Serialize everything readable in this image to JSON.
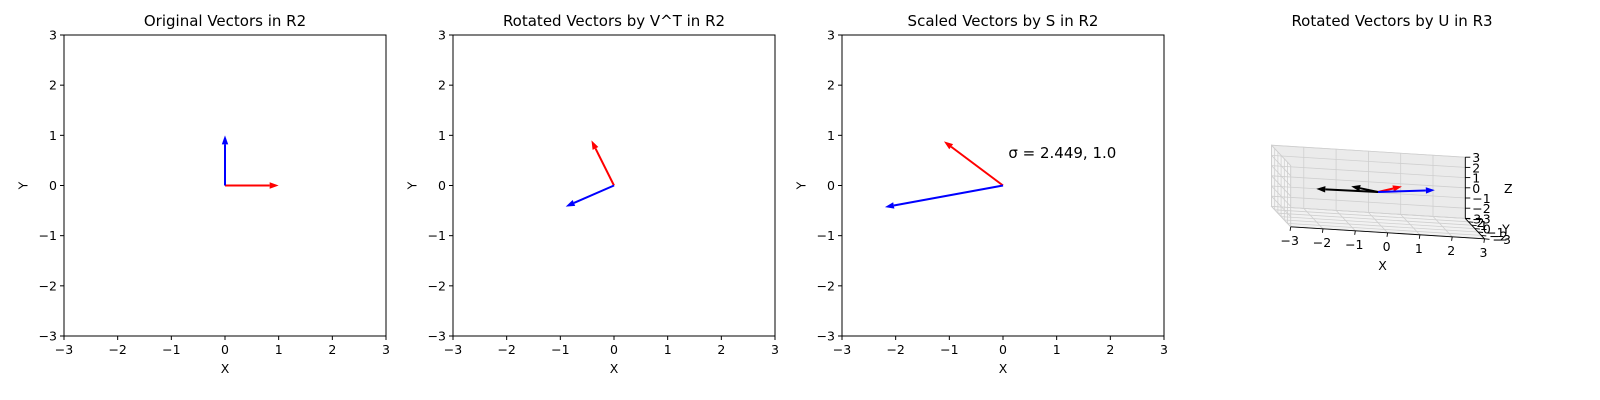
{
  "chart_data": [
    {
      "type": "vector",
      "title": "Original Vectors in R2",
      "xlabel": "X",
      "ylabel": "Y",
      "xlim": [
        -3,
        3
      ],
      "ylim": [
        -3,
        3
      ],
      "ticks": [
        -3,
        -2,
        -1,
        0,
        1,
        2,
        3
      ],
      "tick_labels": [
        "−3",
        "−2",
        "−1",
        "0",
        "1",
        "2",
        "3"
      ],
      "grid": false,
      "vectors": [
        {
          "color": "#ff0000",
          "x": 0,
          "y": 0,
          "dx": 1.0,
          "dy": 0.0
        },
        {
          "color": "#0000ff",
          "x": 0,
          "y": 0,
          "dx": 0.0,
          "dy": 1.0
        }
      ]
    },
    {
      "type": "vector",
      "title": "Rotated Vectors by V^T in R2",
      "xlabel": "X",
      "ylabel": "Y",
      "xlim": [
        -3,
        3
      ],
      "ylim": [
        -3,
        3
      ],
      "ticks": [
        -3,
        -2,
        -1,
        0,
        1,
        2,
        3
      ],
      "tick_labels": [
        "−3",
        "−2",
        "−1",
        "0",
        "1",
        "2",
        "3"
      ],
      "grid": false,
      "vectors": [
        {
          "color": "#ff0000",
          "x": 0,
          "y": 0,
          "dx": -0.42,
          "dy": 0.9
        },
        {
          "color": "#0000ff",
          "x": 0,
          "y": 0,
          "dx": -0.9,
          "dy": -0.42
        }
      ]
    },
    {
      "type": "vector",
      "title": "Scaled Vectors by S in R2",
      "xlabel": "X",
      "ylabel": "Y",
      "xlim": [
        -3,
        3
      ],
      "ylim": [
        -3,
        3
      ],
      "ticks": [
        -3,
        -2,
        -1,
        0,
        1,
        2,
        3
      ],
      "tick_labels": [
        "−3",
        "−2",
        "−1",
        "0",
        "1",
        "2",
        "3"
      ],
      "grid": false,
      "annotation": {
        "text": "σ = 2.449, 1.0",
        "x": 0.1,
        "y": 0.55
      },
      "vectors": [
        {
          "color": "#ff0000",
          "x": 0,
          "y": 0,
          "dx": -1.1,
          "dy": 0.88
        },
        {
          "color": "#0000ff",
          "x": 0,
          "y": 0,
          "dx": -2.2,
          "dy": -0.43
        }
      ]
    },
    {
      "type": "vector3d",
      "title": "Rotated Vectors by U in R3",
      "xlabel": "X",
      "ylabel": "Y",
      "zlabel": "Z",
      "xlim": [
        -3,
        3
      ],
      "ylim": [
        -3,
        3
      ],
      "zlim": [
        -3,
        3
      ],
      "xticks": [
        "−3",
        "−2",
        "−1",
        "0",
        "1",
        "2",
        "3"
      ],
      "yticks": [
        "−3",
        "−2",
        "−1",
        "0",
        "1",
        "2",
        "3"
      ],
      "zticks": [
        "−3",
        "−2",
        "−1",
        "0",
        "1",
        "2",
        "3"
      ],
      "grid": true,
      "vectors": [
        {
          "color": "#ff0000",
          "x": 0,
          "y": 0,
          "z": 0,
          "dx": 0.8,
          "dy": 0.6,
          "dz": 0.5
        },
        {
          "color": "#0000ff",
          "x": 0,
          "y": 0,
          "z": 0,
          "dx": 1.8,
          "dy": 0.4,
          "dz": 0.4
        },
        {
          "color": "#000000",
          "x": 0,
          "y": 0,
          "z": 0,
          "dx": -1.9,
          "dy": 0.1,
          "dz": -0.1
        },
        {
          "color": "#000000",
          "x": 0,
          "y": 0,
          "z": 0,
          "dx": -0.8,
          "dy": 0.3,
          "dz": 0.3
        }
      ]
    }
  ]
}
